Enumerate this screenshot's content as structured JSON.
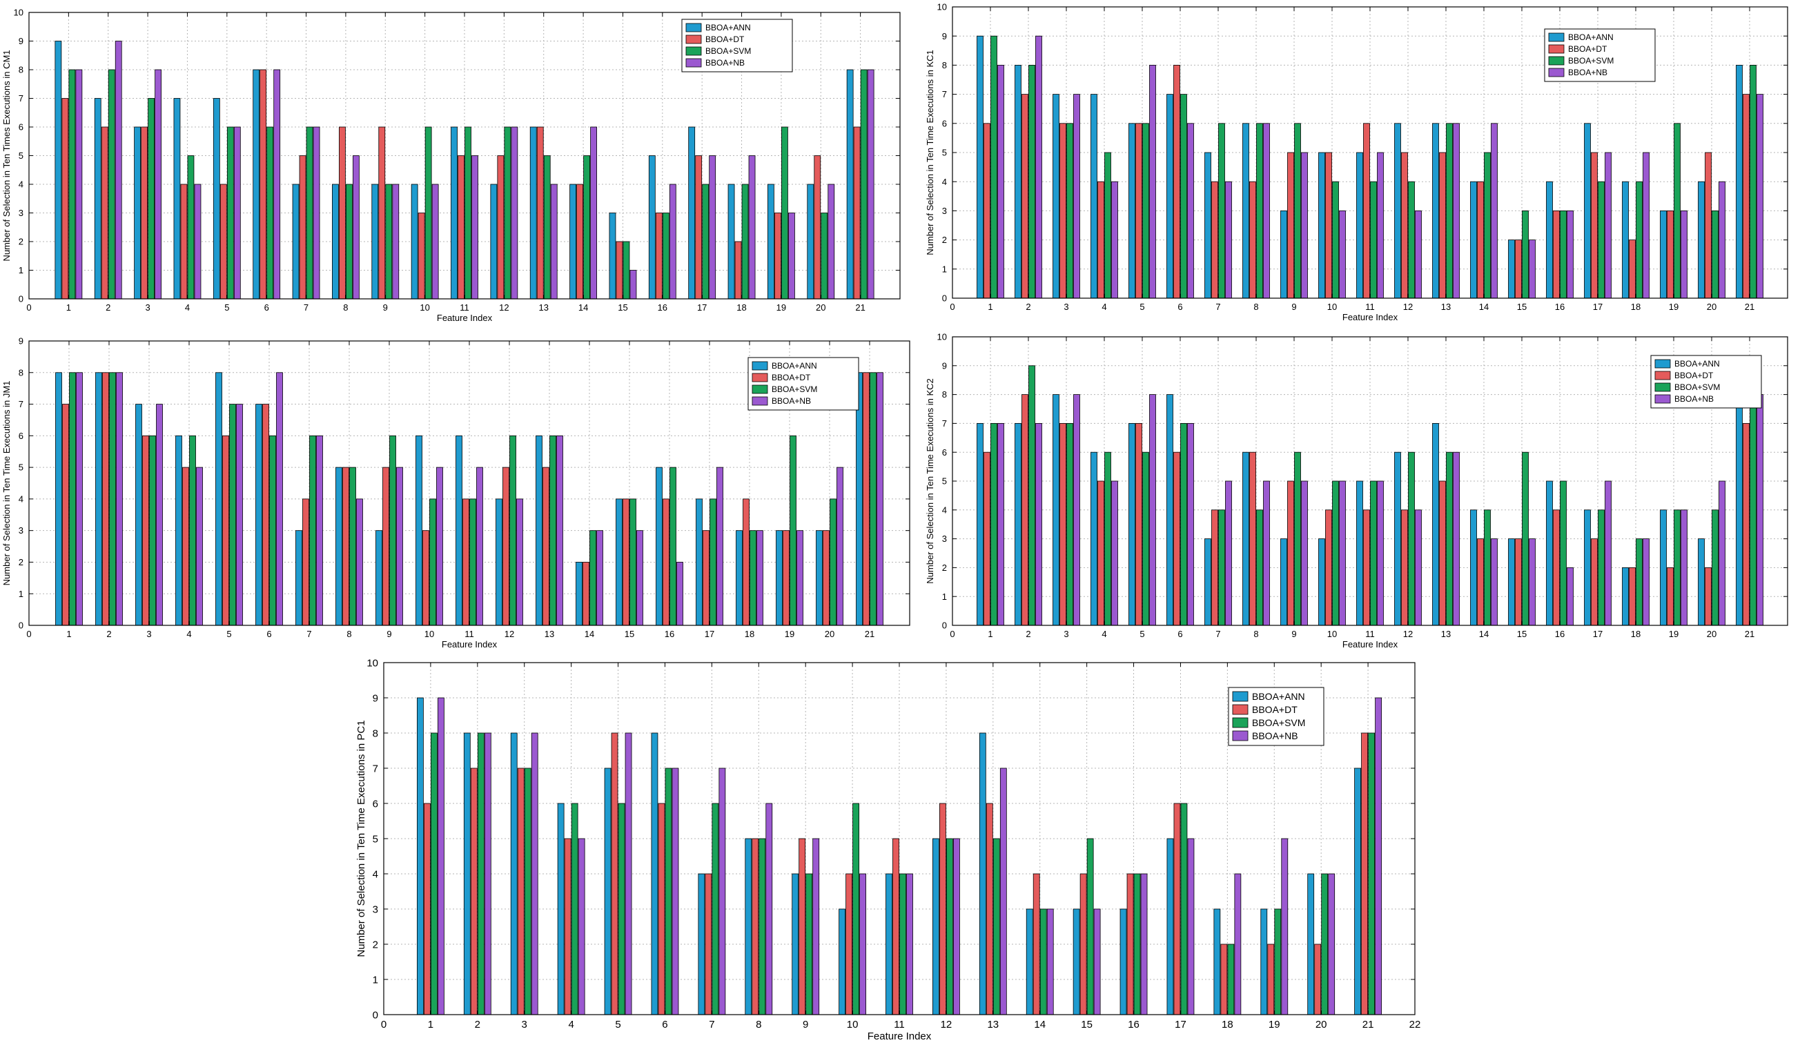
{
  "series_style": {
    "names": [
      "BBOA+ANN",
      "BBOA+DT",
      "BBOA+SVM",
      "BBOA+NB"
    ],
    "colors": [
      "#1f9bcf",
      "#e45b5b",
      "#1aa359",
      "#9b59d0"
    ]
  },
  "chart_data": [
    {
      "id": "cm1",
      "type": "bar",
      "xlabel": "Feature Index",
      "ylabel": "Number of Selection in Ten Times Executions in CM1",
      "ylim": [
        0,
        10
      ],
      "xlim": [
        0,
        22
      ],
      "xticks": [
        "0",
        "1",
        "2",
        "3",
        "4",
        "5",
        "6",
        "7",
        "8",
        "9",
        "10",
        "11",
        "12",
        "13",
        "14",
        "15",
        "16",
        "17",
        "18",
        "19",
        "20",
        "21"
      ],
      "yticks": [
        "0",
        "1",
        "2",
        "3",
        "4",
        "5",
        "6",
        "7",
        "8",
        "9",
        "10"
      ],
      "grid": true,
      "legend_position": "top-right",
      "categories": [
        "1",
        "2",
        "3",
        "4",
        "5",
        "6",
        "7",
        "8",
        "9",
        "10",
        "11",
        "12",
        "13",
        "14",
        "15",
        "16",
        "17",
        "18",
        "19",
        "20",
        "21"
      ],
      "series": [
        {
          "name": "BBOA+ANN",
          "values": [
            9,
            7,
            6,
            7,
            7,
            8,
            4,
            4,
            4,
            4,
            6,
            4,
            6,
            4,
            3,
            5,
            6,
            4,
            4,
            4,
            8
          ]
        },
        {
          "name": "BBOA+DT",
          "values": [
            7,
            6,
            6,
            4,
            4,
            8,
            5,
            6,
            6,
            3,
            5,
            5,
            6,
            4,
            2,
            3,
            5,
            2,
            3,
            5,
            6
          ]
        },
        {
          "name": "BBOA+SVM",
          "values": [
            8,
            8,
            7,
            5,
            6,
            6,
            6,
            4,
            4,
            6,
            6,
            6,
            5,
            5,
            2,
            3,
            4,
            4,
            6,
            3,
            8
          ]
        },
        {
          "name": "BBOA+NB",
          "values": [
            8,
            9,
            8,
            4,
            6,
            8,
            6,
            5,
            4,
            4,
            5,
            6,
            4,
            6,
            1,
            4,
            5,
            5,
            3,
            4,
            8
          ]
        }
      ]
    },
    {
      "id": "kc1",
      "type": "bar",
      "xlabel": "Feature Index",
      "ylabel": "Number of Selection in Ten Time Executions in KC1",
      "ylim": [
        0,
        10
      ],
      "xlim": [
        0,
        22
      ],
      "xticks": [
        "0",
        "1",
        "2",
        "3",
        "4",
        "5",
        "6",
        "7",
        "8",
        "9",
        "10",
        "11",
        "12",
        "13",
        "14",
        "15",
        "16",
        "17",
        "18",
        "19",
        "20",
        "21"
      ],
      "yticks": [
        "0",
        "1",
        "2",
        "3",
        "4",
        "5",
        "6",
        "7",
        "8",
        "9",
        "10"
      ],
      "grid": true,
      "legend_position": "top-right",
      "categories": [
        "1",
        "2",
        "3",
        "4",
        "5",
        "6",
        "7",
        "8",
        "9",
        "10",
        "11",
        "12",
        "13",
        "14",
        "15",
        "16",
        "17",
        "18",
        "19",
        "20",
        "21"
      ],
      "series": [
        {
          "name": "BBOA+ANN",
          "values": [
            9,
            8,
            7,
            7,
            6,
            7,
            5,
            6,
            3,
            5,
            5,
            6,
            6,
            4,
            2,
            4,
            6,
            4,
            3,
            4,
            8
          ]
        },
        {
          "name": "BBOA+DT",
          "values": [
            6,
            7,
            6,
            4,
            6,
            8,
            4,
            4,
            5,
            5,
            6,
            5,
            5,
            4,
            2,
            3,
            5,
            2,
            3,
            5,
            7
          ]
        },
        {
          "name": "BBOA+SVM",
          "values": [
            9,
            8,
            6,
            5,
            6,
            7,
            6,
            6,
            6,
            4,
            4,
            4,
            6,
            5,
            3,
            3,
            4,
            4,
            6,
            3,
            8
          ]
        },
        {
          "name": "BBOA+NB",
          "values": [
            8,
            9,
            7,
            4,
            8,
            6,
            4,
            6,
            5,
            3,
            5,
            3,
            6,
            6,
            2,
            3,
            5,
            5,
            3,
            4,
            7
          ]
        }
      ]
    },
    {
      "id": "jm1",
      "type": "bar",
      "xlabel": "Feature Index",
      "ylabel": "Number of Selection in Ten Time Executions in JM1",
      "ylim": [
        0,
        9
      ],
      "xlim": [
        0,
        22
      ],
      "xticks": [
        "0",
        "1",
        "2",
        "3",
        "4",
        "5",
        "6",
        "7",
        "8",
        "9",
        "10",
        "11",
        "12",
        "13",
        "14",
        "15",
        "16",
        "17",
        "18",
        "19",
        "20",
        "21"
      ],
      "yticks": [
        "0",
        "1",
        "2",
        "3",
        "4",
        "5",
        "6",
        "7",
        "8",
        "9"
      ],
      "grid": true,
      "legend_position": "top-right",
      "categories": [
        "1",
        "2",
        "3",
        "4",
        "5",
        "6",
        "7",
        "8",
        "9",
        "10",
        "11",
        "12",
        "13",
        "14",
        "15",
        "16",
        "17",
        "18",
        "19",
        "20",
        "21"
      ],
      "series": [
        {
          "name": "BBOA+ANN",
          "values": [
            8,
            8,
            7,
            6,
            8,
            7,
            3,
            5,
            3,
            6,
            6,
            4,
            6,
            2,
            4,
            5,
            4,
            3,
            3,
            3,
            8
          ]
        },
        {
          "name": "BBOA+DT",
          "values": [
            7,
            8,
            6,
            5,
            6,
            7,
            4,
            5,
            5,
            3,
            4,
            5,
            5,
            2,
            4,
            4,
            3,
            4,
            3,
            3,
            8
          ]
        },
        {
          "name": "BBOA+SVM",
          "values": [
            8,
            8,
            6,
            6,
            7,
            6,
            6,
            5,
            6,
            4,
            4,
            6,
            6,
            3,
            4,
            5,
            4,
            3,
            6,
            4,
            8
          ]
        },
        {
          "name": "BBOA+NB",
          "values": [
            8,
            8,
            7,
            5,
            7,
            8,
            6,
            4,
            5,
            5,
            5,
            4,
            6,
            3,
            3,
            2,
            5,
            3,
            3,
            5,
            8
          ]
        }
      ]
    },
    {
      "id": "kc2",
      "type": "bar",
      "xlabel": "Feature Index",
      "ylabel": "Number of Selection in Ten Time Executions in KC2",
      "ylim": [
        0,
        10
      ],
      "xlim": [
        0,
        22
      ],
      "xticks": [
        "0",
        "1",
        "2",
        "3",
        "4",
        "5",
        "6",
        "7",
        "8",
        "9",
        "10",
        "11",
        "12",
        "13",
        "14",
        "15",
        "16",
        "17",
        "18",
        "19",
        "20",
        "21"
      ],
      "yticks": [
        "0",
        "1",
        "2",
        "3",
        "4",
        "5",
        "6",
        "7",
        "8",
        "9",
        "10"
      ],
      "grid": true,
      "legend_position": "top-right",
      "categories": [
        "1",
        "2",
        "3",
        "4",
        "5",
        "6",
        "7",
        "8",
        "9",
        "10",
        "11",
        "12",
        "13",
        "14",
        "15",
        "16",
        "17",
        "18",
        "19",
        "20",
        "21"
      ],
      "series": [
        {
          "name": "BBOA+ANN",
          "values": [
            7,
            7,
            8,
            6,
            7,
            8,
            3,
            6,
            3,
            3,
            5,
            6,
            7,
            4,
            3,
            5,
            4,
            2,
            4,
            3,
            8
          ]
        },
        {
          "name": "BBOA+DT",
          "values": [
            6,
            8,
            7,
            5,
            7,
            6,
            4,
            6,
            5,
            4,
            4,
            4,
            5,
            3,
            3,
            4,
            3,
            2,
            2,
            2,
            7
          ]
        },
        {
          "name": "BBOA+SVM",
          "values": [
            7,
            9,
            7,
            6,
            6,
            7,
            4,
            4,
            6,
            5,
            5,
            6,
            6,
            4,
            6,
            5,
            4,
            3,
            4,
            4,
            9
          ]
        },
        {
          "name": "BBOA+NB",
          "values": [
            7,
            7,
            8,
            5,
            8,
            7,
            5,
            5,
            5,
            5,
            5,
            4,
            6,
            3,
            3,
            2,
            5,
            3,
            4,
            5,
            8
          ]
        }
      ]
    },
    {
      "id": "pc1",
      "type": "bar",
      "xlabel": "Feature Index",
      "ylabel": "Number of Selection in Ten Time Executions in PC1",
      "ylim": [
        0,
        10
      ],
      "xlim": [
        0,
        22
      ],
      "xticks": [
        "0",
        "1",
        "2",
        "3",
        "4",
        "5",
        "6",
        "7",
        "8",
        "9",
        "10",
        "11",
        "12",
        "13",
        "14",
        "15",
        "16",
        "17",
        "18",
        "19",
        "20",
        "21",
        "22"
      ],
      "yticks": [
        "0",
        "1",
        "2",
        "3",
        "4",
        "5",
        "6",
        "7",
        "8",
        "9",
        "10"
      ],
      "grid": true,
      "legend_position": "top-right",
      "categories": [
        "1",
        "2",
        "3",
        "4",
        "5",
        "6",
        "7",
        "8",
        "9",
        "10",
        "11",
        "12",
        "13",
        "14",
        "15",
        "16",
        "17",
        "18",
        "19",
        "20",
        "21"
      ],
      "series": [
        {
          "name": "BBOA+ANN",
          "values": [
            9,
            8,
            8,
            6,
            7,
            8,
            4,
            5,
            4,
            3,
            4,
            5,
            8,
            3,
            3,
            3,
            5,
            3,
            3,
            4,
            7
          ]
        },
        {
          "name": "BBOA+DT",
          "values": [
            6,
            7,
            7,
            5,
            8,
            6,
            4,
            5,
            5,
            4,
            5,
            6,
            6,
            4,
            4,
            4,
            6,
            2,
            2,
            2,
            8
          ]
        },
        {
          "name": "BBOA+SVM",
          "values": [
            8,
            8,
            7,
            6,
            6,
            7,
            6,
            5,
            4,
            6,
            4,
            5,
            5,
            3,
            5,
            4,
            6,
            2,
            3,
            4,
            8
          ]
        },
        {
          "name": "BBOA+NB",
          "values": [
            9,
            8,
            8,
            5,
            8,
            7,
            7,
            6,
            5,
            4,
            4,
            5,
            7,
            3,
            3,
            4,
            5,
            4,
            5,
            4,
            9
          ]
        }
      ]
    }
  ]
}
